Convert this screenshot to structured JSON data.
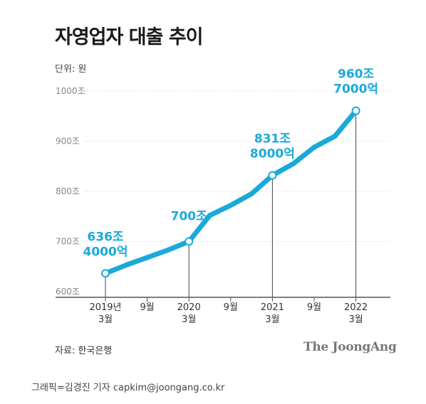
{
  "title": "자영업자 대출 추이",
  "unit_label": "단위: 원",
  "source": "자료: 한국은행",
  "brand": "The JoongAng",
  "credit": "그래픽=김경진 기자 capkim@joongang.co.kr",
  "colors": {
    "line": "#1aa9d8",
    "label": "#1aa9d8",
    "axis": "#555555",
    "grid": "#cccccc",
    "text": "#222222"
  },
  "chart_data": {
    "type": "line",
    "title": "자영업자 대출 추이",
    "ylabel": "단위: 원",
    "ylim": [
      600,
      1000
    ],
    "y_ticks": [
      600,
      700,
      800,
      900,
      1000
    ],
    "y_tick_labels": [
      "600조",
      "700조",
      "800조",
      "900조",
      "1000조"
    ],
    "grid": "horizontal dotted",
    "x_ticks": [
      {
        "x": 0,
        "line1": "2019년",
        "line2": "3월"
      },
      {
        "x": 2,
        "line1": "9월",
        "line2": ""
      },
      {
        "x": 4,
        "line1": "2020",
        "line2": "3월"
      },
      {
        "x": 6,
        "line1": "9월",
        "line2": ""
      },
      {
        "x": 8,
        "line1": "2021",
        "line2": "3월"
      },
      {
        "x": 10,
        "line1": "9월",
        "line2": ""
      },
      {
        "x": 12,
        "line1": "2022",
        "line2": "3월"
      }
    ],
    "x_unit": "quarter index from 2019년 3월",
    "series": [
      {
        "values": [
          [
            0,
            636.4
          ],
          [
            1,
            653
          ],
          [
            2,
            668
          ],
          [
            3,
            683
          ],
          [
            4,
            700
          ],
          [
            5,
            752
          ],
          [
            6,
            772
          ],
          [
            7,
            795
          ],
          [
            8,
            831.8
          ],
          [
            9,
            855
          ],
          [
            10,
            888
          ],
          [
            11,
            910
          ],
          [
            12,
            960.7
          ]
        ]
      }
    ],
    "annotations": [
      {
        "x": 0,
        "y": 636.4,
        "line1": "636조",
        "line2": "4000억"
      },
      {
        "x": 4,
        "y": 700,
        "line1": "700조",
        "line2": ""
      },
      {
        "x": 8,
        "y": 831.8,
        "line1": "831조",
        "line2": "8000억"
      },
      {
        "x": 12,
        "y": 960.7,
        "line1": "960조",
        "line2": "7000억"
      }
    ]
  }
}
